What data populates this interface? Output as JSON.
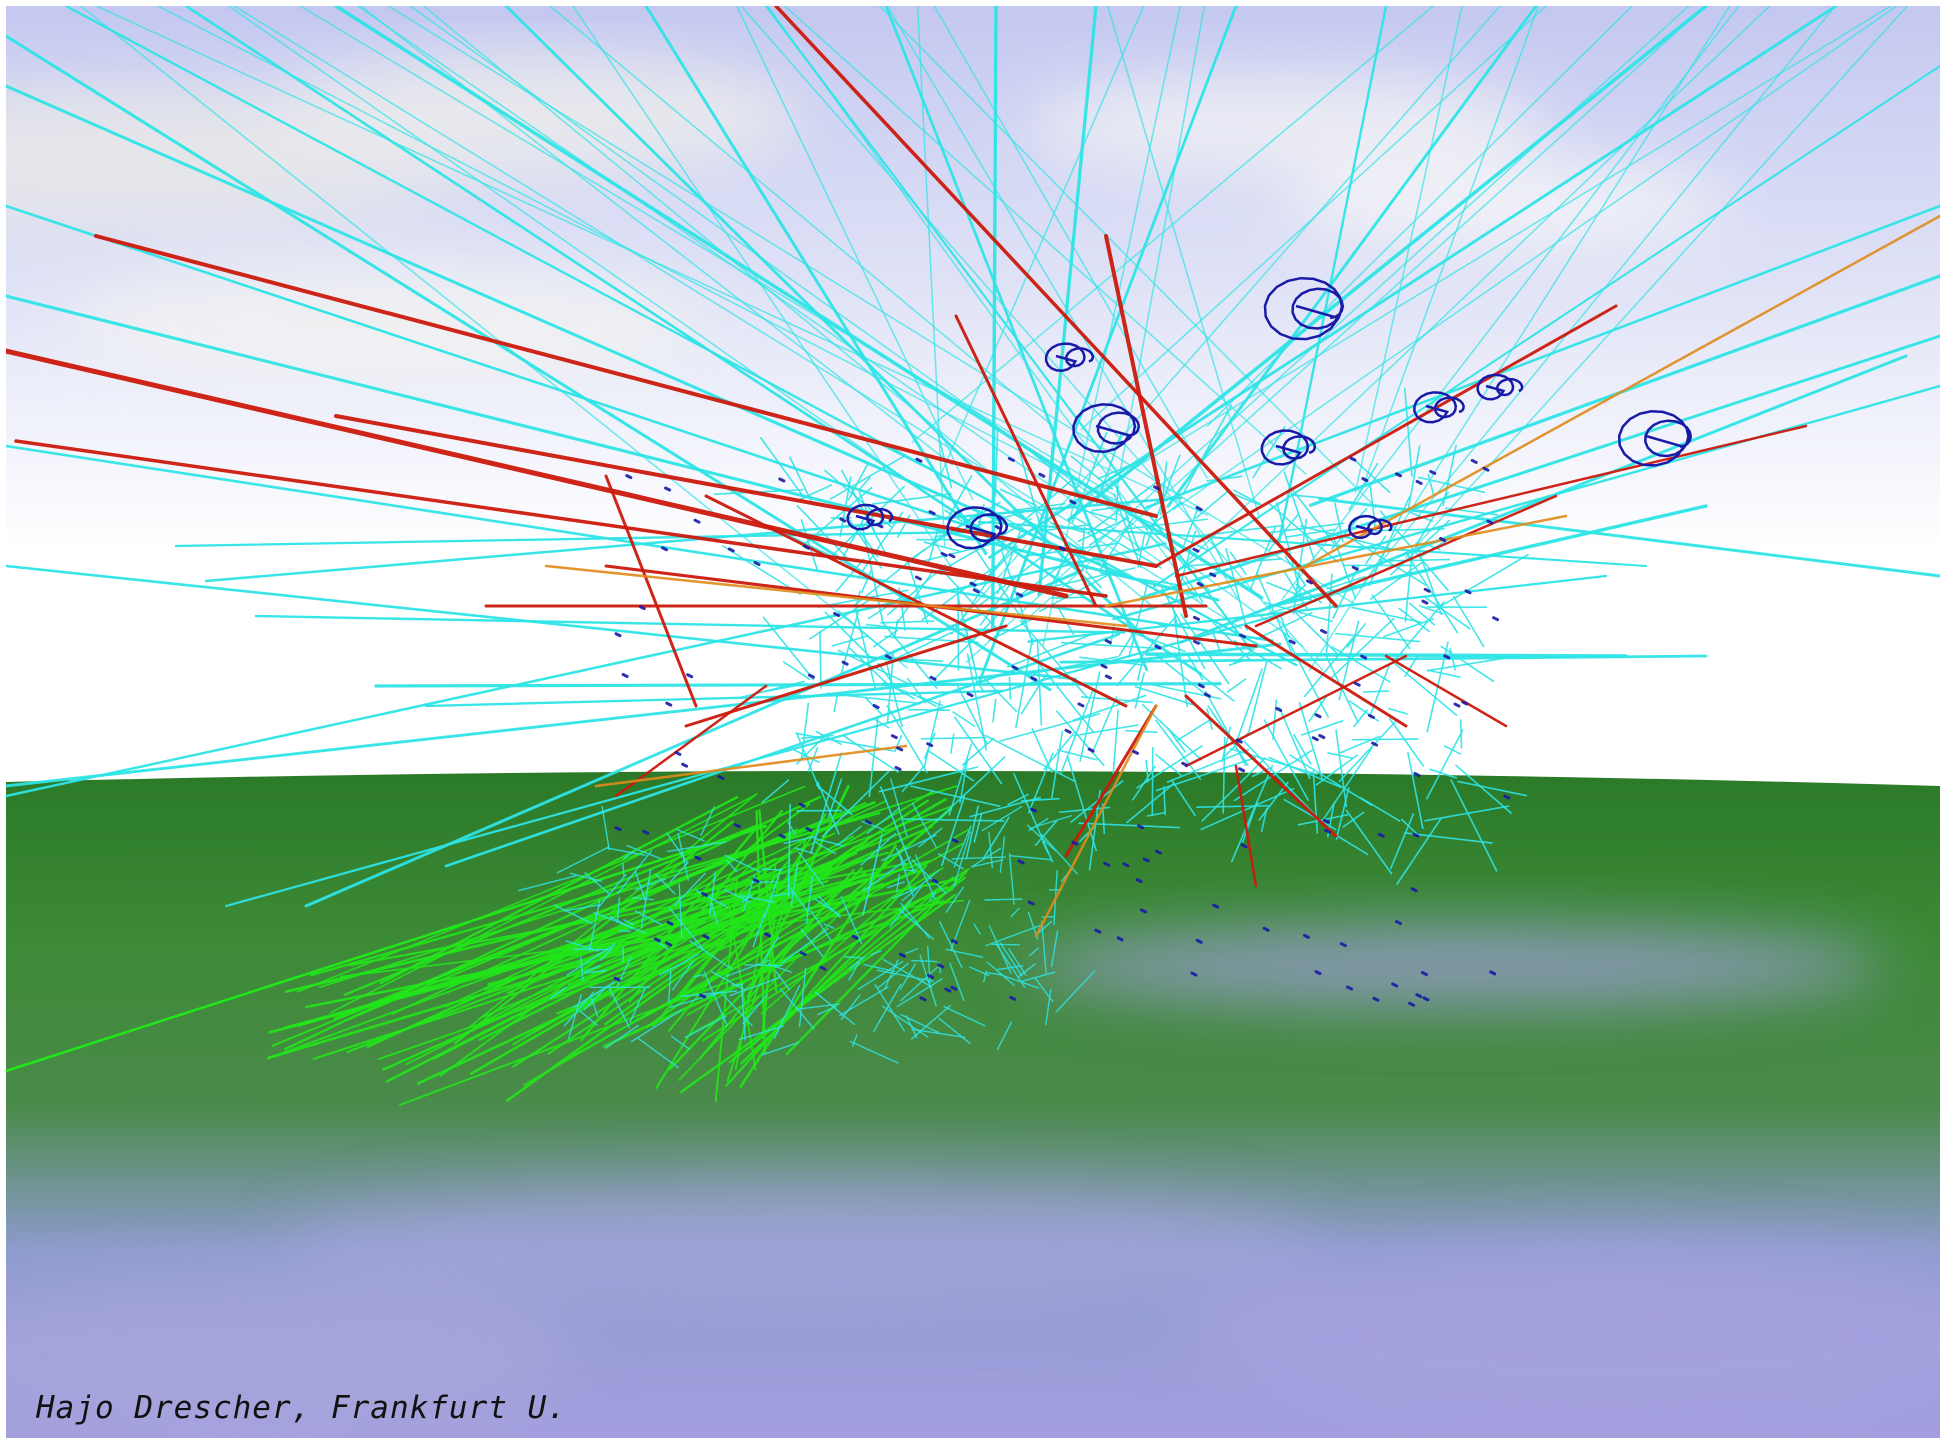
{
  "credit": "Hajo Drescher, Frankfurt U.",
  "colors": {
    "sky_top": "#bcc4ee",
    "sky_horizon": "#ffffff",
    "cloud": "#e4e4e6",
    "ground_near": "#1f6a1f",
    "ground_mid": "#3f8a3a",
    "water": "#a8a6dc",
    "track_cyan": "#2ee4e6",
    "track_red": "#cc1a0c",
    "track_orange": "#e08a1a",
    "track_green": "#22e61a",
    "track_blue": "#1a1aa8"
  }
}
